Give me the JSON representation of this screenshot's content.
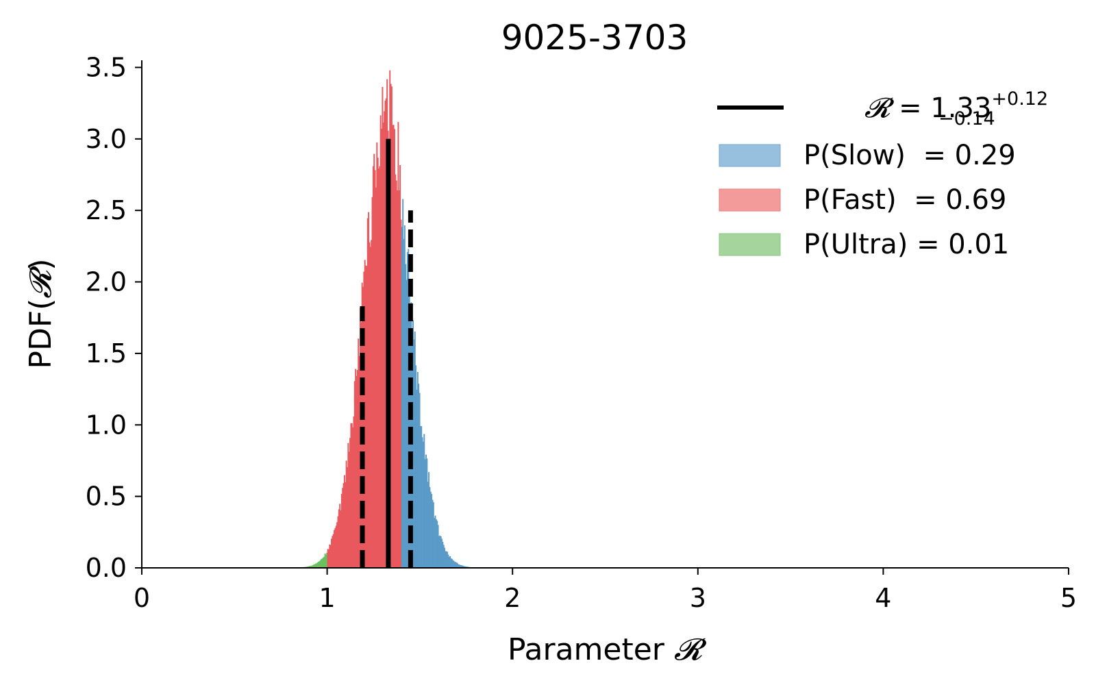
{
  "chart_data": {
    "type": "histogram",
    "title": "9025-3703",
    "xlabel": "Parameter",
    "xlabel_symbol": "𝓡",
    "ylabel": "PDF(",
    "ylabel_symbol": "𝓡",
    "ylabel_close": ")",
    "xlim": [
      0,
      5
    ],
    "ylim": [
      0,
      3.55
    ],
    "xticks": [
      "0",
      "1",
      "2",
      "3",
      "4",
      "5"
    ],
    "yticks": [
      "0.0",
      "0.5",
      "1.0",
      "1.5",
      "2.0",
      "2.5",
      "3.0",
      "3.5"
    ],
    "distribution": {
      "mean": 1.32,
      "sd": 0.125,
      "x_min": 0.75,
      "x_max": 1.82,
      "bin_width": 0.005
    },
    "regions": [
      {
        "name": "Ultra",
        "x_range": [
          0.75,
          1.0
        ],
        "color": "#6abf5f"
      },
      {
        "name": "Fast",
        "x_range": [
          1.0,
          1.4
        ],
        "color": "#e8585c"
      },
      {
        "name": "Slow",
        "x_range": [
          1.4,
          1.82
        ],
        "color": "#5b9bc8"
      }
    ],
    "median_line": {
      "x": 1.33,
      "height": 3.0,
      "color": "#000000"
    },
    "interval_lines": [
      {
        "x": 1.19,
        "height": 1.83
      },
      {
        "x": 1.45,
        "height": 2.5
      }
    ],
    "legend": {
      "position": "top-right",
      "median": {
        "symbol": "𝓡",
        "eq": " = 1.33",
        "sup": "+0.12",
        "sub": "−0.14"
      },
      "entries": [
        {
          "label": "P(Slow)  = 0.29",
          "color": "#97c0de",
          "edge": "#7aaad0"
        },
        {
          "label": "P(Fast)  = 0.69",
          "color": "#f39a9b",
          "edge": "#e87c7e"
        },
        {
          "label": "P(Ultra) = 0.01",
          "color": "#a5d59c",
          "edge": "#8cc784"
        }
      ]
    }
  }
}
